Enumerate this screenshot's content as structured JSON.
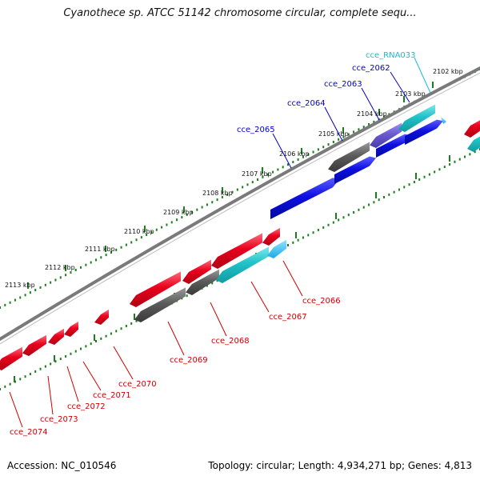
{
  "title": "Cyanothece sp. ATCC 51142 chromosome circular, complete sequ...",
  "footer": {
    "accession": "Accession: NC_010546",
    "summary": "Topology: circular; Length: 4,934,271 bp; Genes: 4,813"
  },
  "colors": {
    "forward_label": "#0000cc",
    "reverse_label": "#cc0000",
    "rna_label": "#17bcd6",
    "backbone": "#7a7a7a",
    "tick": "#1a7f1a",
    "gene_red": "#e8001c",
    "gene_blue": "#0d10e0",
    "gene_gray": "#5c5c5c",
    "gene_teal": "#20c2c8",
    "gene_purple": "#6a5acd"
  },
  "ticks": [
    "2102 kbp",
    "2103 kbp",
    "2104 kbp",
    "2105 kbp",
    "2106 kbp",
    "2107 kbp",
    "2108 kbp",
    "2109 kbp",
    "2110 kbp",
    "2111 kbp",
    "2112 kbp",
    "2113 kbp"
  ],
  "top_labels": [
    {
      "text": "cce_RNA033",
      "color": "rna"
    },
    {
      "text": "cce_2062",
      "color": "forward"
    },
    {
      "text": "cce_2063",
      "color": "forward"
    },
    {
      "text": "cce_2064",
      "color": "forward"
    },
    {
      "text": "cce_2065",
      "color": "forward"
    }
  ],
  "bottom_labels": [
    {
      "text": "cce_2066"
    },
    {
      "text": "cce_2067"
    },
    {
      "text": "cce_2068"
    },
    {
      "text": "cce_2069"
    },
    {
      "text": "cce_2070"
    },
    {
      "text": "cce_2071"
    },
    {
      "text": "cce_2072"
    },
    {
      "text": "cce_2073"
    },
    {
      "text": "cce_2074"
    }
  ]
}
